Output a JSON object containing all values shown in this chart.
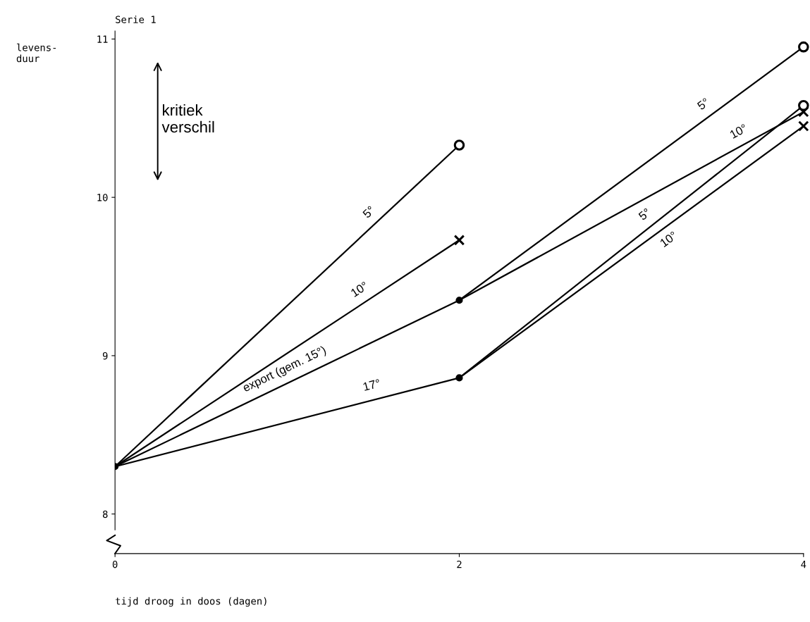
{
  "chart_data": {
    "type": "line",
    "title": "Serie 1",
    "xlabel": "tijd droog in doos (dagen)",
    "ylabel": "levens-\nduur",
    "xlim": [
      0,
      4
    ],
    "ylim": [
      7.75,
      11.05
    ],
    "xticks": [
      0,
      2,
      4
    ],
    "yticks": [
      8,
      9,
      10,
      11
    ],
    "grid": false,
    "annotations": [
      "kritiek\nverschil"
    ],
    "series": [
      {
        "name": "5°",
        "x": [
          0,
          2
        ],
        "values": [
          8.3,
          10.33
        ],
        "color": "#000000",
        "marker": "circle"
      },
      {
        "name": "10°",
        "x": [
          0,
          2
        ],
        "values": [
          8.3,
          9.73
        ],
        "color": "#000000",
        "marker": "cross"
      },
      {
        "name": "export (gem. 15°)",
        "x": [
          0,
          2
        ],
        "values": [
          8.3,
          9.35
        ],
        "color": "#000000",
        "marker": "none"
      },
      {
        "name": "17°",
        "x": [
          0,
          2
        ],
        "values": [
          8.3,
          8.86
        ],
        "color": "#000000",
        "marker": "none"
      },
      {
        "name": "5°",
        "x": [
          2,
          4
        ],
        "values": [
          9.35,
          10.95
        ],
        "color": "#000000",
        "marker": "circle"
      },
      {
        "name": "10°",
        "x": [
          2,
          4
        ],
        "values": [
          9.35,
          10.54
        ],
        "color": "#000000",
        "marker": "cross"
      },
      {
        "name": "5°",
        "x": [
          2,
          4
        ],
        "values": [
          8.86,
          10.58
        ],
        "color": "#000000",
        "marker": "circle"
      },
      {
        "name": "10°",
        "x": [
          2,
          4
        ],
        "values": [
          8.86,
          10.45
        ],
        "color": "#000000",
        "marker": "cross"
      },
      {
        "type": "scatter",
        "x": [
          0,
          2,
          2
        ],
        "values": [
          8.3,
          9.35,
          8.86
        ],
        "color": "#000000",
        "marker": "circle"
      }
    ]
  }
}
